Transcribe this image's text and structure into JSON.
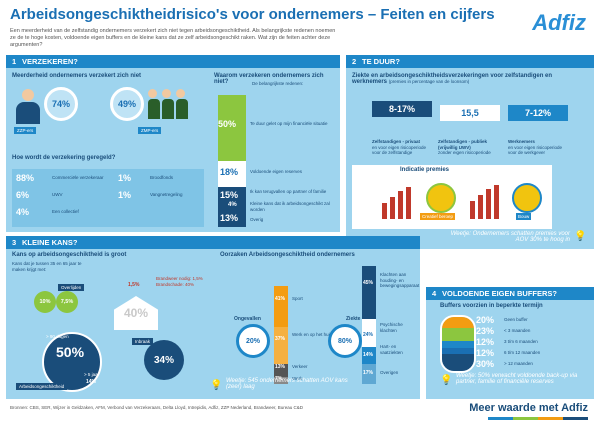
{
  "header": {
    "title": "Arbeidsongeschiktheidrisico's voor ondernemers – Feiten en cijfers",
    "intro": "Een meerderheid van de zelfstandig ondernemers verzekert zich niet tegen arbeidsongeschiktheid. Als belangrijkste redenen noemen ze de te hoge kosten, voldoende eigen buffers en de kleine kans dat ze zelf arbeidsongeschikt raken. Wat zijn de feiten achter deze argumenten?",
    "logo": "Adfiz"
  },
  "s1": {
    "num": "1",
    "title": "VERZEKEREN?",
    "q1": "Meerderheid ondernemers verzekert zich niet",
    "zzp_pct": "74%",
    "zzp_label": "ZZP-ers",
    "mkb_pct": "49%",
    "mkb_label": "ZMP-ers",
    "q2": "Hoe wordt de verzekering geregeld?",
    "reg": [
      {
        "pct": "88%",
        "label": "Commerciële verzekeraar"
      },
      {
        "pct": "1%",
        "label": "Broodfonds"
      },
      {
        "pct": "6%",
        "label": "UWV"
      },
      {
        "pct": "1%",
        "label": "Vangnetregeling"
      },
      {
        "pct": "4%",
        "label": "Een collectief"
      }
    ],
    "q3": "Waarom verzekeren ondernemers zich niet?",
    "q3_sub": "De belangrijkste redenen:",
    "reasons": [
      {
        "pct": "50%",
        "label": "Te duur gelet op mijn financiële situatie"
      },
      {
        "pct": "18%",
        "label": "Voldoende eigen reserves"
      },
      {
        "pct": "15%",
        "label": "Ik kan terugvallen op partner of familie"
      },
      {
        "pct": "4%",
        "label": "Kleine kans dat ik arbeidsongeschikt zal worden"
      },
      {
        "pct": "13%",
        "label": "Overig"
      }
    ]
  },
  "s2": {
    "num": "2",
    "title": "TE DUUR?",
    "q1": "Ziekte en arbeidsongeschiktheidsverzekeringen voor zelfstandigen en werknemers",
    "q1_note": "(premies in percentage van de loonsom)",
    "ranges": [
      {
        "value": "8-17%",
        "label": "Zelfstandigen - privaat",
        "sub": "en voor eigen risicoperiode voor de zelfstandige"
      },
      {
        "value": "15,5",
        "label": "Zelfstandigen - publiek (vrijwillig UWV)",
        "sub": "zonder eigen risicoperiode"
      },
      {
        "value": "7-12%",
        "label": "Werknemers",
        "sub": "en voor eigen risicoperiode voor de werkgever"
      }
    ],
    "premies_title": "Indicatie premies",
    "p1_label": "Creatief beroep",
    "p2_label": "Bouw",
    "note": "Weetje: Ondernemers schatten premies voor AOV 30% te hoog in"
  },
  "s3": {
    "num": "3",
    "title": "KLEINE KANS?",
    "q1": "Kans op arbeidsongeschiktheid is groot",
    "q1_sub": "Kans dat je tussen 35 en 65 jaar te maken krijgt met:",
    "overlijden_label": "Overlijden",
    "overlijden_a": "10%",
    "overlijden_b": "7,5%",
    "brand_a": "1,5%",
    "brand_big": "40%",
    "brand_label": "Brandweer nodig: 1,5%",
    "brand_label2": "Brandschade: 40%",
    "ao_days": "> 90 dagen",
    "ao_pct": "50%",
    "ao_years": "> 5 jaar",
    "ao_pct2": "14%",
    "ao_label": "Arbeidsongeschiktheid",
    "inbraak_label": "Inbraak",
    "inbraak_pct": "34%",
    "q2": "Oorzaken Arbeidsongeschiktheid ondernemers",
    "ongeval_label": "Ongevallen",
    "ongeval_center": "20%",
    "ongeval_items": [
      {
        "pct": "41%",
        "label": "Sport"
      },
      {
        "pct": "37%",
        "label": "Werk en op het huis"
      },
      {
        "pct": "13%",
        "label": "Verkeer"
      },
      {
        "pct": "7%",
        "label": "Werk"
      }
    ],
    "ziekte_label": "Ziekte",
    "ziekte_center": "80%",
    "ziekte_items": [
      {
        "pct": "45%",
        "label": "Klachten aan houding- en bewegingsapparaat"
      },
      {
        "pct": "24%",
        "label": "Psychische klachten"
      },
      {
        "pct": "14%",
        "label": "Hart- en vaatziekten"
      },
      {
        "pct": "17%",
        "label": "Overigen"
      }
    ],
    "note": "Weetje: 545 ondernemers schatten AOV kans (zeer) laag"
  },
  "s4": {
    "num": "4",
    "title": "VOLDOENDE EIGEN BUFFERS?",
    "q1": "Buffers voorzien in beperkte termijn",
    "items": [
      {
        "pct": "20%",
        "label": "Geen buffer"
      },
      {
        "pct": "23%",
        "label": "< 3 maanden"
      },
      {
        "pct": "12%",
        "label": "3 t/m 6 maanden"
      },
      {
        "pct": "12%",
        "label": "6 t/m 12 maanden"
      },
      {
        "pct": "30%",
        "label": "> 12 maanden"
      }
    ],
    "note": "Weetje: 50% verwacht voldoende back-up via partner, familie of financiële reserves"
  },
  "footer": {
    "sources": "Bronnen: CBS, SER, Wijzer in Geldzaken, AFM, Verbond van Verzekeraars, Delta Lloyd, Intrepidis, Adfiz, ZZP Nederland, Brandweer, Bureau C&D",
    "slogan": "Meer waarde met Adfiz"
  },
  "colors": {
    "accent": "#1e87c8",
    "panel": "#9ed4ee",
    "orange": "#f39c12",
    "green": "#8cc63f",
    "navy": "#1a4d7a"
  }
}
